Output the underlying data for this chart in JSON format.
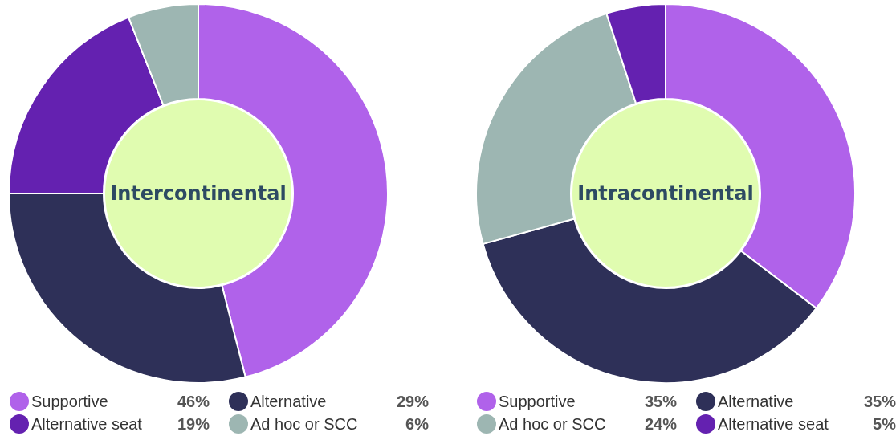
{
  "chart_data": [
    {
      "type": "donut",
      "title": "Intercontinental",
      "categories": [
        "Supportive",
        "Alternative",
        "Alternative seat",
        "Ad hoc or SCC"
      ],
      "values": [
        46,
        29,
        19,
        6
      ],
      "value_labels": [
        "46%",
        "29%",
        "19%",
        "6%"
      ],
      "colors": [
        "#b062ea",
        "#2e3058",
        "#6421b0",
        "#9db6b2"
      ],
      "legend": "bottom"
    },
    {
      "type": "donut",
      "title": "Intracontinental",
      "categories": [
        "Supportive",
        "Alternative",
        "Ad hoc or SCC",
        "Alternative seat"
      ],
      "values": [
        35,
        35,
        24,
        5
      ],
      "value_labels": [
        "35%",
        "35%",
        "24%",
        "5%"
      ],
      "colors": [
        "#b062ea",
        "#2e3058",
        "#9db6b2",
        "#6421b0"
      ],
      "legend": "bottom"
    }
  ]
}
